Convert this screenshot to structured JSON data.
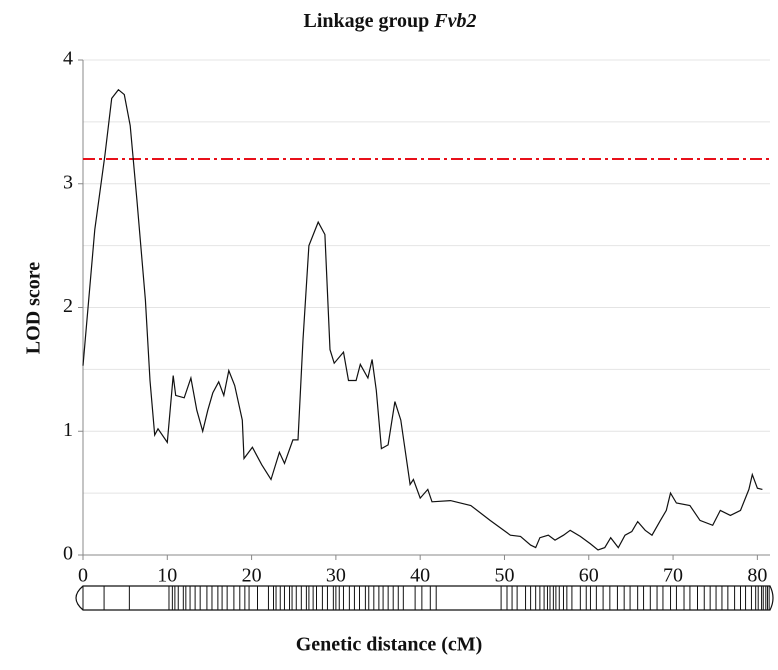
{
  "chart_data": {
    "type": "line",
    "title": [
      "Linkage group",
      "Fvb2"
    ],
    "xlabel": "Genetic distance (cM)",
    "ylabel": "LOD score",
    "xlim": [
      0,
      81.5
    ],
    "ylim": [
      0,
      4
    ],
    "xticks": [
      0,
      10,
      20,
      30,
      40,
      50,
      60,
      70,
      80
    ],
    "yticks": [
      0,
      1,
      2,
      3,
      4
    ],
    "ygrid": [
      0.5,
      1,
      1.5,
      2,
      2.5,
      3,
      3.5,
      4
    ],
    "threshold": {
      "value": 3.2,
      "color": "#e8101a"
    },
    "series": [
      {
        "color": "#111111",
        "x": [
          0,
          1.4,
          2.6,
          3.4,
          4.2,
          4.9,
          5.6,
          6.4,
          7.4,
          7.95,
          8.5,
          8.9,
          10.0,
          10.7,
          11.0,
          12.0,
          12.8,
          13.5,
          14.2,
          14.8,
          15.4,
          16.1,
          16.7,
          17.3,
          18.0,
          18.9,
          19.1,
          20.1,
          21.2,
          22.3,
          23.3,
          23.9,
          24.9,
          25.5,
          26.1,
          26.8,
          27.9,
          28.7,
          29.3,
          29.8,
          30.9,
          31.5,
          32.4,
          32.9,
          33.8,
          34.3,
          34.8,
          35.4,
          36.2,
          37.0,
          37.7,
          38.8,
          39.2,
          40.0,
          40.9,
          41.4,
          43.6,
          46.0,
          48.3,
          50.7,
          51.9,
          53.1,
          53.7,
          54.2,
          55.2,
          56.0,
          57.0,
          57.8,
          59.0,
          60.2,
          61.1,
          61.9,
          62.6,
          63.5,
          64.3,
          65.1,
          65.8,
          66.7,
          67.5,
          68.5,
          69.2,
          69.7,
          70.4,
          72.0,
          73.2,
          74.7,
          75.6,
          76.8,
          78.0,
          79.0,
          79.4,
          80.0,
          80.6
        ],
        "values": [
          1.53,
          2.63,
          3.23,
          3.69,
          3.76,
          3.72,
          3.47,
          2.87,
          2.06,
          1.41,
          0.97,
          1.02,
          0.91,
          1.45,
          1.29,
          1.27,
          1.43,
          1.17,
          1.0,
          1.17,
          1.31,
          1.4,
          1.29,
          1.49,
          1.37,
          1.09,
          0.78,
          0.87,
          0.73,
          0.61,
          0.83,
          0.74,
          0.93,
          0.93,
          1.74,
          2.5,
          2.69,
          2.59,
          1.66,
          1.55,
          1.64,
          1.41,
          1.41,
          1.54,
          1.43,
          1.58,
          1.33,
          0.86,
          0.89,
          1.24,
          1.09,
          0.57,
          0.61,
          0.46,
          0.53,
          0.43,
          0.44,
          0.4,
          0.28,
          0.16,
          0.15,
          0.08,
          0.06,
          0.14,
          0.16,
          0.12,
          0.16,
          0.2,
          0.15,
          0.09,
          0.04,
          0.06,
          0.14,
          0.06,
          0.16,
          0.19,
          0.27,
          0.2,
          0.16,
          0.28,
          0.36,
          0.5,
          0.42,
          0.4,
          0.28,
          0.24,
          0.36,
          0.32,
          0.36,
          0.53,
          0.65,
          0.54,
          0.53
        ]
      }
    ],
    "markers": [
      0,
      2.5,
      5.5,
      10.2,
      10.6,
      10.9,
      11.3,
      11.9,
      12.2,
      12.7,
      13.3,
      13.9,
      14.7,
      15.3,
      16.0,
      16.5,
      17.1,
      17.9,
      18.6,
      19.2,
      19.7,
      20.7,
      22.0,
      22.6,
      22.9,
      23.4,
      23.9,
      24.5,
      24.8,
      25.3,
      25.9,
      26.5,
      26.8,
      27.3,
      27.7,
      28.4,
      29.0,
      29.7,
      30.0,
      30.4,
      30.9,
      31.6,
      32.2,
      32.8,
      33.5,
      33.9,
      34.5,
      35.1,
      35.6,
      36.2,
      36.8,
      37.4,
      38.0,
      39.4,
      40.2,
      41.2,
      41.9,
      49.6,
      50.3,
      50.9,
      51.5,
      52.5,
      53.1,
      53.7,
      54.2,
      54.7,
      55.1,
      55.4,
      55.8,
      56.1,
      56.5,
      57.0,
      57.4,
      58.0,
      59.0,
      59.7,
      60.2,
      60.9,
      61.7,
      62.5,
      63.4,
      64.2,
      64.9,
      65.8,
      66.5,
      67.3,
      68.1,
      68.8,
      69.7,
      70.4,
      71.3,
      72.0,
      72.9,
      73.7,
      74.4,
      75.1,
      75.8,
      76.5,
      77.3,
      78.0,
      78.6,
      79.3,
      79.8,
      80.1,
      80.5,
      80.7,
      81.0,
      81.2,
      81.4
    ]
  }
}
